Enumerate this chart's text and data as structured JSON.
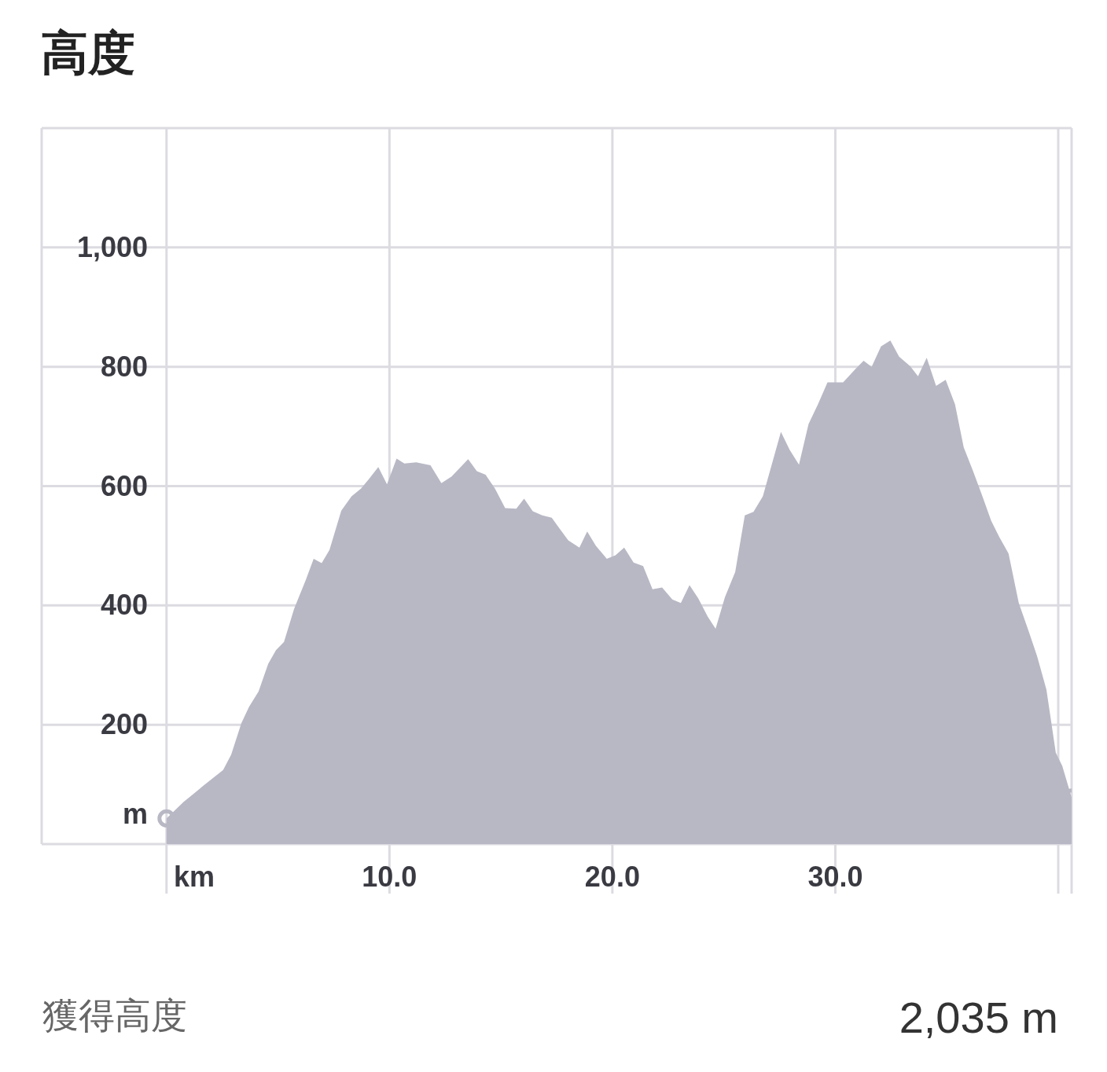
{
  "chart_data": {
    "type": "area",
    "title": "高度",
    "xlim": [
      -5.6,
      40.6
    ],
    "xlabel": "km",
    "ylabel": "m",
    "xticks": [
      {
        "value": 0,
        "label": null
      },
      {
        "value": 10,
        "label": "10.0"
      },
      {
        "value": 20,
        "label": "20.0"
      },
      {
        "value": 30,
        "label": "30.0"
      },
      {
        "value": 40,
        "label": null
      },
      {
        "value": 40.6,
        "label": null
      }
    ],
    "ylim": [
      0,
      1200
    ],
    "yticks": [
      {
        "value": 0,
        "label": null
      },
      200,
      400,
      600,
      800,
      {
        "value": 1000,
        "label": "1,000"
      },
      {
        "value": 1200,
        "label": null
      }
    ],
    "grid": true,
    "annotations": [
      "獲得高度",
      "2,035 m"
    ],
    "x": [
      0,
      0.78,
      1.66,
      2.54,
      2.9,
      3.36,
      3.7,
      4.13,
      4.56,
      4.91,
      5.27,
      5.72,
      6.25,
      6.6,
      6.96,
      7.31,
      7.84,
      8.3,
      8.73,
      9.08,
      9.5,
      9.89,
      10.32,
      10.67,
      11.2,
      11.84,
      12.33,
      12.79,
      13.53,
      13.92,
      14.31,
      14.73,
      15.19,
      15.69,
      16.04,
      16.43,
      16.86,
      17.28,
      17.63,
      18.02,
      18.52,
      18.87,
      19.26,
      19.75,
      20.14,
      20.53,
      20.95,
      21.38,
      21.8,
      22.23,
      22.69,
      23.07,
      23.46,
      23.85,
      24.28,
      24.63,
      25.05,
      25.51,
      25.94,
      26.33,
      26.75,
      27.17,
      27.56,
      27.95,
      28.37,
      28.8,
      29.22,
      29.65,
      30.35,
      30.92,
      31.27,
      31.63,
      32.05,
      32.47,
      32.86,
      33.36,
      33.71,
      34.1,
      34.52,
      34.95,
      35.37,
      35.76,
      36.18,
      36.57,
      36.99,
      37.35,
      37.77,
      38.23,
      38.69,
      39.05,
      39.47,
      39.89,
      40.18,
      40.6
    ],
    "series": [
      {
        "color": "#b8b8c5",
        "values": [
          43,
          71,
          98,
          124,
          150,
          203,
          230,
          256,
          302,
          325,
          339,
          394,
          443,
          478,
          471,
          493,
          559,
          583,
          596,
          612,
          632,
          603,
          646,
          638,
          640,
          635,
          605,
          616,
          645,
          625,
          619,
          596,
          563,
          562,
          579,
          558,
          551,
          547,
          529,
          509,
          497,
          524,
          500,
          478,
          484,
          497,
          472,
          466,
          427,
          430,
          410,
          404,
          434,
          412,
          381,
          361,
          414,
          456,
          551,
          557,
          583,
          639,
          691,
          661,
          636,
          704,
          737,
          774,
          774,
          797,
          810,
          800,
          834,
          844,
          817,
          801,
          784,
          815,
          768,
          778,
          737,
          665,
          625,
          586,
          542,
          515,
          487,
          404,
          355,
          315,
          259,
          153,
          131,
          78
        ]
      }
    ]
  }
}
